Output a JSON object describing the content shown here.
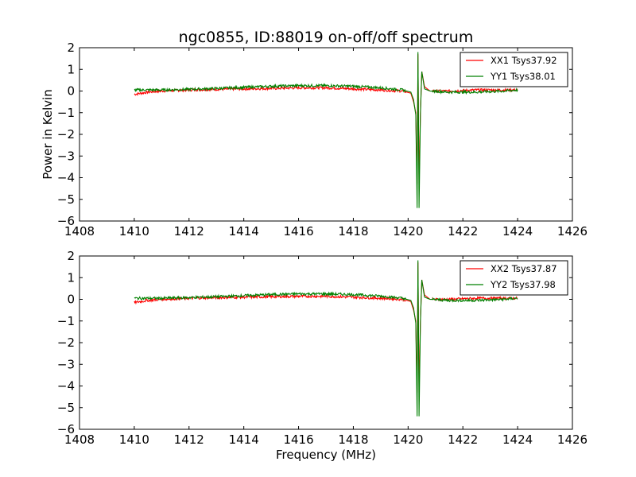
{
  "figure": {
    "title": "ngc0855, ID:88019 on-off/off spectrum"
  },
  "chart_data": [
    {
      "type": "line",
      "title": "ngc0855, ID:88019 on-off/off spectrum",
      "xlabel": "",
      "ylabel": "Power in Kelvin",
      "xlim": [
        1408,
        1426
      ],
      "ylim": [
        -6,
        2
      ],
      "xticks": [
        1408,
        1410,
        1412,
        1414,
        1416,
        1418,
        1420,
        1422,
        1424,
        1426
      ],
      "yticks": [
        2,
        1,
        0,
        -1,
        -2,
        -3,
        -4,
        -5,
        -6
      ],
      "legend_position": "top-right",
      "series": [
        {
          "name": "XX1 Tsys37.92",
          "color": "#ff0000",
          "x": [
            1410.0,
            1410.5,
            1411.0,
            1412.0,
            1413.0,
            1414.0,
            1415.0,
            1416.0,
            1417.0,
            1418.0,
            1419.0,
            1419.8,
            1420.1,
            1420.2,
            1420.28,
            1420.33,
            1420.36,
            1420.4,
            1420.45,
            1420.5,
            1420.6,
            1420.8,
            1421.5,
            1422.5,
            1423.5,
            1424.0
          ],
          "y": [
            -0.15,
            -0.05,
            0.0,
            0.05,
            0.08,
            0.1,
            0.12,
            0.15,
            0.15,
            0.1,
            0.05,
            0.0,
            -0.1,
            -0.5,
            -1.0,
            -4.3,
            1.7,
            -4.3,
            -1.0,
            0.9,
            0.2,
            0.0,
            0.0,
            0.05,
            0.05,
            0.05
          ]
        },
        {
          "name": "YY1 Tsys38.01",
          "color": "#008000",
          "x": [
            1410.0,
            1410.5,
            1411.0,
            1412.0,
            1413.0,
            1414.0,
            1415.0,
            1416.0,
            1417.0,
            1418.0,
            1419.0,
            1419.8,
            1420.1,
            1420.2,
            1420.28,
            1420.33,
            1420.36,
            1420.4,
            1420.45,
            1420.5,
            1420.6,
            1420.8,
            1421.5,
            1422.5,
            1423.5,
            1424.0
          ],
          "y": [
            0.05,
            0.05,
            0.05,
            0.08,
            0.12,
            0.17,
            0.22,
            0.25,
            0.25,
            0.22,
            0.15,
            0.05,
            -0.05,
            -0.4,
            -1.1,
            -5.4,
            1.8,
            -5.4,
            -1.1,
            0.9,
            0.1,
            0.0,
            -0.05,
            -0.05,
            0.0,
            0.05
          ]
        }
      ]
    },
    {
      "type": "line",
      "title": "",
      "xlabel": "Frequency (MHz)",
      "ylabel": "",
      "xlim": [
        1408,
        1426
      ],
      "ylim": [
        -6,
        2
      ],
      "xticks": [
        1408,
        1410,
        1412,
        1414,
        1416,
        1418,
        1420,
        1422,
        1424,
        1426
      ],
      "yticks": [
        2,
        1,
        0,
        -1,
        -2,
        -3,
        -4,
        -5,
        -6
      ],
      "legend_position": "top-right",
      "series": [
        {
          "name": "XX2 Tsys37.87",
          "color": "#ff0000",
          "x": [
            1410.0,
            1410.5,
            1411.0,
            1412.0,
            1413.0,
            1414.0,
            1415.0,
            1416.0,
            1417.0,
            1418.0,
            1419.0,
            1419.8,
            1420.1,
            1420.2,
            1420.28,
            1420.33,
            1420.36,
            1420.4,
            1420.45,
            1420.5,
            1420.6,
            1420.8,
            1421.5,
            1422.5,
            1423.5,
            1424.0
          ],
          "y": [
            -0.15,
            -0.05,
            0.0,
            0.05,
            0.08,
            0.1,
            0.12,
            0.14,
            0.14,
            0.1,
            0.05,
            0.0,
            -0.1,
            -0.5,
            -1.0,
            -4.3,
            1.7,
            -4.3,
            -1.0,
            0.9,
            0.2,
            0.0,
            0.0,
            0.05,
            0.05,
            0.05
          ]
        },
        {
          "name": "YY2 Tsys37.98",
          "color": "#008000",
          "x": [
            1410.0,
            1410.5,
            1411.0,
            1412.0,
            1413.0,
            1414.0,
            1415.0,
            1416.0,
            1417.0,
            1418.0,
            1419.0,
            1419.8,
            1420.1,
            1420.2,
            1420.28,
            1420.33,
            1420.36,
            1420.4,
            1420.45,
            1420.5,
            1420.6,
            1420.8,
            1421.5,
            1422.5,
            1423.5,
            1424.0
          ],
          "y": [
            0.05,
            0.05,
            0.05,
            0.08,
            0.12,
            0.17,
            0.22,
            0.25,
            0.25,
            0.22,
            0.15,
            0.05,
            -0.05,
            -0.4,
            -1.1,
            -5.4,
            1.8,
            -5.4,
            -1.1,
            0.9,
            0.1,
            0.0,
            -0.05,
            -0.05,
            0.0,
            0.05
          ]
        }
      ]
    }
  ]
}
